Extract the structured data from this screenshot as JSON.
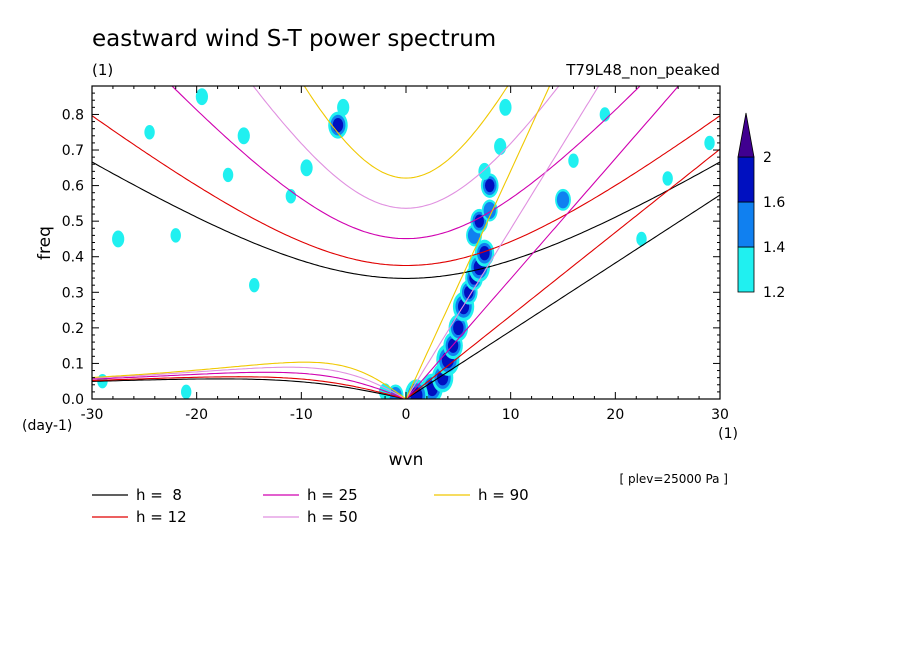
{
  "title": "eastward wind S-T power spectrum",
  "subtitle_left": "(1)",
  "subtitle_right": "T79L48_non_peaked",
  "annotation": "[ plev=25000 Pa ]",
  "colors": {
    "h8": "#000000",
    "h12": "#e00000",
    "h25": "#d000b0",
    "h50": "#e090e0",
    "h90": "#f0c800",
    "level_1_2": "#20f0f0",
    "level_1_4": "#1080f0",
    "level_1_6": "#0010c0",
    "level_2": "#400090"
  },
  "chart_data": {
    "type": "heatmap",
    "title": "eastward wind S-T power spectrum",
    "xlabel": "wvn",
    "ylabel": "freq",
    "x_unit": "(1)",
    "y_unit": "(day-1)",
    "xlim": [
      -30,
      30
    ],
    "ylim": [
      0,
      0.88
    ],
    "x_ticks": [
      -30,
      -20,
      -10,
      0,
      10,
      20,
      30
    ],
    "x_tick_labels": [
      "-30",
      "-20",
      "-10",
      "0",
      "10",
      "20",
      "30"
    ],
    "y_ticks": [
      0,
      0.1,
      0.2,
      0.3,
      0.4,
      0.5,
      0.6,
      0.7,
      0.8
    ],
    "y_tick_labels": [
      "0.0",
      "0.1",
      "0.2",
      "0.3",
      "0.4",
      "0.5",
      "0.6",
      "0.7",
      "0.8"
    ],
    "colorbar": {
      "levels": [
        1.2,
        1.4,
        1.6,
        2
      ],
      "labels": [
        "1.2",
        "1.4",
        "1.6",
        "2"
      ],
      "colors": [
        "#20f0f0",
        "#1080f0",
        "#0010c0",
        "#400090"
      ]
    },
    "dispersion_series": [
      {
        "label": "h = 8",
        "h": 8,
        "color": "#000000"
      },
      {
        "label": "h = 12",
        "h": 12,
        "color": "#e00000"
      },
      {
        "label": "h = 25",
        "h": 25,
        "color": "#d000b0"
      },
      {
        "label": "h = 50",
        "h": 50,
        "color": "#e090e0"
      },
      {
        "label": "h = 90",
        "h": 90,
        "color": "#f0c800"
      }
    ],
    "blobs": [
      [
        2.5,
        0.03,
        1.8
      ],
      [
        3.5,
        0.06,
        1.8
      ],
      [
        4,
        0.11,
        1.9
      ],
      [
        4.5,
        0.15,
        1.7
      ],
      [
        5,
        0.2,
        1.7
      ],
      [
        5.5,
        0.26,
        1.8
      ],
      [
        6,
        0.3,
        1.6
      ],
      [
        6.5,
        0.34,
        1.6
      ],
      [
        7,
        0.37,
        1.8
      ],
      [
        7.5,
        0.41,
        1.7
      ],
      [
        6.5,
        0.46,
        1.5
      ],
      [
        7,
        0.5,
        1.6
      ],
      [
        8,
        0.53,
        1.5
      ],
      [
        8,
        0.6,
        1.6
      ],
      [
        7.5,
        0.64,
        1.3
      ],
      [
        9,
        0.71,
        1.3
      ],
      [
        9.5,
        0.82,
        1.3
      ],
      [
        1,
        0.01,
        1.9
      ],
      [
        -1,
        0.01,
        1.5
      ],
      [
        -2,
        0.02,
        1.3
      ],
      [
        -6.5,
        0.77,
        1.7
      ],
      [
        -6,
        0.82,
        1.3
      ],
      [
        -9.5,
        0.65,
        1.3
      ],
      [
        -19.5,
        0.85,
        1.3
      ],
      [
        -15.5,
        0.74,
        1.3
      ],
      [
        -24.5,
        0.75,
        1.2
      ],
      [
        -17,
        0.63,
        1.2
      ],
      [
        -27.5,
        0.45,
        1.3
      ],
      [
        -22,
        0.46,
        1.2
      ],
      [
        -11,
        0.57,
        1.2
      ],
      [
        -14.5,
        0.32,
        1.2
      ],
      [
        15,
        0.56,
        1.5
      ],
      [
        16,
        0.67,
        1.2
      ],
      [
        25,
        0.62,
        1.2
      ],
      [
        29,
        0.72,
        1.2
      ],
      [
        19,
        0.8,
        1.2
      ],
      [
        22.5,
        0.45,
        1.2
      ],
      [
        -29,
        0.05,
        1.2
      ],
      [
        -21,
        0.02,
        1.2
      ]
    ]
  },
  "legend": {
    "items": [
      {
        "label": "h =  8",
        "color": "#000000"
      },
      {
        "label": "h = 12",
        "color": "#e00000"
      },
      {
        "label": "h = 25",
        "color": "#d000b0"
      },
      {
        "label": "h = 50",
        "color": "#e090e0"
      },
      {
        "label": "h = 90",
        "color": "#f0c800"
      }
    ]
  }
}
